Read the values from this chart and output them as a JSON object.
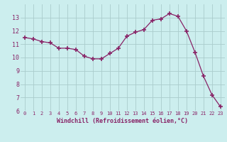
{
  "x": [
    0,
    1,
    2,
    3,
    4,
    5,
    6,
    7,
    8,
    9,
    10,
    11,
    12,
    13,
    14,
    15,
    16,
    17,
    18,
    19,
    20,
    21,
    22,
    23
  ],
  "y": [
    11.5,
    11.4,
    11.2,
    11.1,
    10.7,
    10.7,
    10.6,
    10.1,
    9.9,
    9.9,
    10.3,
    10.7,
    11.6,
    11.9,
    12.1,
    12.8,
    12.9,
    13.3,
    13.1,
    12.0,
    10.4,
    8.6,
    7.2,
    6.3
  ],
  "line_color": "#882266",
  "marker": "+",
  "marker_size": 4,
  "marker_linewidth": 1.2,
  "bg_color": "#cceeee",
  "grid_color": "#aacccc",
  "xlabel": "Windchill (Refroidissement éolien,°C)",
  "tick_color": "#882266",
  "ylim": [
    6,
    14
  ],
  "yticks": [
    6,
    7,
    8,
    9,
    10,
    11,
    12,
    13
  ],
  "xlim": [
    -0.5,
    23.5
  ],
  "xticks": [
    0,
    1,
    2,
    3,
    4,
    5,
    6,
    7,
    8,
    9,
    10,
    11,
    12,
    13,
    14,
    15,
    16,
    17,
    18,
    19,
    20,
    21,
    22,
    23
  ]
}
